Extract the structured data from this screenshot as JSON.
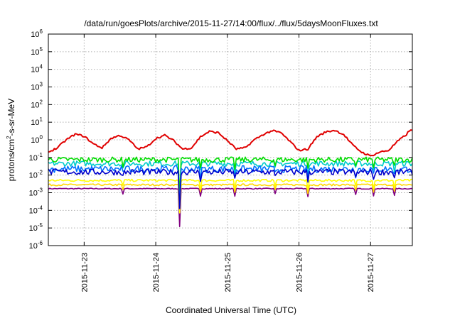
{
  "chart_data": {
    "type": "line",
    "title": "/data/run/goesPlots/archive/2015-11-27/14:00/flux/../flux/5daysMoonFluxes.txt",
    "xlabel": "Coordinated Universal Time (UTC)",
    "ylabel": {
      "base": "protons/cm",
      "sup": "2",
      "rest": "-s-sr-MeV"
    },
    "yscale": "log",
    "ylim": [
      1e-06,
      1000000.0
    ],
    "xlim": [
      "2015-11-22T12:00",
      "2015-11-27T14:00"
    ],
    "grid": true,
    "legend": "none",
    "y_ticks": [
      {
        "mantissa": "10",
        "exp": "-6",
        "value": 1e-06
      },
      {
        "mantissa": "10",
        "exp": "-5",
        "value": 1e-05
      },
      {
        "mantissa": "10",
        "exp": "-4",
        "value": 0.0001
      },
      {
        "mantissa": "10",
        "exp": "-3",
        "value": 0.001
      },
      {
        "mantissa": "10",
        "exp": "-2",
        "value": 0.01
      },
      {
        "mantissa": "10",
        "exp": "-1",
        "value": 0.1
      },
      {
        "mantissa": "10",
        "exp": "0",
        "value": 1
      },
      {
        "mantissa": "10",
        "exp": "1",
        "value": 10
      },
      {
        "mantissa": "10",
        "exp": "2",
        "value": 100
      },
      {
        "mantissa": "10",
        "exp": "3",
        "value": 1000
      },
      {
        "mantissa": "10",
        "exp": "4",
        "value": 10000
      },
      {
        "mantissa": "10",
        "exp": "5",
        "value": 100000
      },
      {
        "mantissa": "10",
        "exp": "6",
        "value": 1000000
      }
    ],
    "x_ticks": [
      {
        "label": "2015-11-23",
        "value": "2015-11-23T00:00"
      },
      {
        "label": "2015-11-24",
        "value": "2015-11-24T00:00"
      },
      {
        "label": "2015-11-25",
        "value": "2015-11-25T00:00"
      },
      {
        "label": "2015-11-26",
        "value": "2015-11-26T00:00"
      },
      {
        "label": "2015-11-27",
        "value": "2015-11-27T00:00"
      }
    ],
    "series": [
      {
        "color": "#e00000",
        "baseline": [
          [
            0,
            0.2
          ],
          [
            0.25,
            0.35
          ],
          [
            0.5,
            1.0
          ],
          [
            0.75,
            2.1
          ],
          [
            1.0,
            1.6
          ],
          [
            1.25,
            0.6
          ],
          [
            1.5,
            0.35
          ],
          [
            1.75,
            1.2
          ],
          [
            2.0,
            1.8
          ],
          [
            2.25,
            1.0
          ],
          [
            2.5,
            0.3
          ],
          [
            2.75,
            0.4
          ],
          [
            3.0,
            1.2
          ],
          [
            3.25,
            1.8
          ],
          [
            3.5,
            0.9
          ],
          [
            3.75,
            0.3
          ],
          [
            4.0,
            0.35
          ],
          [
            4.25,
            1.5
          ],
          [
            4.5,
            3.0
          ],
          [
            4.75,
            2.5
          ],
          [
            5.0,
            0.9
          ],
          [
            5.25,
            0.3
          ],
          [
            5.5,
            0.35
          ],
          [
            5.75,
            1.0
          ],
          [
            6.0,
            2.0
          ],
          [
            6.25,
            3.3
          ],
          [
            6.5,
            2.5
          ],
          [
            6.75,
            0.8
          ],
          [
            7.0,
            0.25
          ],
          [
            7.25,
            0.3
          ],
          [
            7.5,
            1.5
          ],
          [
            7.75,
            2.8
          ],
          [
            8.0,
            3.5
          ],
          [
            8.25,
            2.0
          ],
          [
            8.5,
            0.5
          ],
          [
            8.75,
            0.2
          ],
          [
            9.0,
            0.12
          ],
          [
            9.25,
            0.2
          ],
          [
            9.5,
            0.25
          ],
          [
            9.75,
            0.8
          ],
          [
            10.0,
            2.0
          ],
          [
            10.08,
            3.3
          ]
        ],
        "noise": 0.12
      },
      {
        "color": "#00dd00",
        "level": 0.075,
        "noise": 0.35
      },
      {
        "color": "#00cccc",
        "level": 0.045,
        "noise": 0.35
      },
      {
        "color": "#0070ff",
        "level": 0.022,
        "noise": 0.45
      },
      {
        "color": "#0000cc",
        "level": 0.015,
        "noise": 0.4
      },
      {
        "color": "#ffff00",
        "level": 0.005,
        "noise": 0.15
      },
      {
        "color": "#ffd700",
        "level": 0.0028,
        "noise": 0.12
      },
      {
        "color": "#800080",
        "level": 0.0017,
        "noise": 0.06
      }
    ],
    "spikes": [
      {
        "day_offset": 1.05,
        "depth_factor": 0.5
      },
      {
        "day_offset": 1.83,
        "depth_factor": 0.01,
        "purple_min": 1.2e-05
      },
      {
        "day_offset": 2.12,
        "depth_factor": 0.4
      },
      {
        "day_offset": 2.6,
        "depth_factor": 0.35
      },
      {
        "day_offset": 3.17,
        "depth_factor": 0.5
      },
      {
        "day_offset": 3.63,
        "depth_factor": 0.35
      },
      {
        "day_offset": 4.3,
        "depth_factor": 0.45
      },
      {
        "day_offset": 4.55,
        "depth_factor": 0.4
      },
      {
        "day_offset": 4.83,
        "depth_factor": 0.4
      },
      {
        "day_offset": 6.0,
        "depth_factor": 0.4
      },
      {
        "day_offset": 6.3,
        "depth_factor": 0.45
      },
      {
        "day_offset": 6.65,
        "depth_factor": 0.35
      },
      {
        "day_offset": 8.4,
        "depth_factor": 0.4
      },
      {
        "day_offset": 8.7,
        "depth_factor": 0.5
      },
      {
        "day_offset": 9.2,
        "depth_factor": 0.45
      }
    ]
  }
}
